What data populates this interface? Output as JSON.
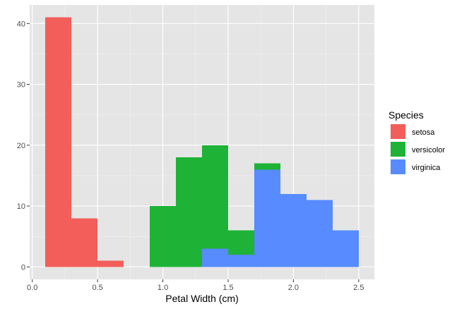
{
  "chart_data": {
    "type": "bar",
    "subtype": "stacked-histogram",
    "title": "",
    "xlabel": "Petal Width (cm)",
    "ylabel": "",
    "xlim": [
      -0.02,
      2.62
    ],
    "ylim": [
      -2.05,
      43.05
    ],
    "x_ticks": [
      0.0,
      0.5,
      1.0,
      1.5,
      2.0,
      2.5
    ],
    "x_tick_labels": [
      "0.0",
      "0.5",
      "1.0",
      "1.5",
      "2.0",
      "2.5"
    ],
    "y_ticks": [
      0,
      10,
      20,
      30,
      40
    ],
    "y_tick_labels": [
      "0",
      "10",
      "20",
      "30",
      "40"
    ],
    "grid": true,
    "background": "#e5e5e5",
    "bin_width": 0.2,
    "bin_starts": [
      0.1,
      0.3,
      0.5,
      0.7,
      0.9,
      1.1,
      1.3,
      1.5,
      1.7,
      1.9,
      2.1,
      2.3
    ],
    "series": [
      {
        "name": "virginica",
        "color": "#578bff",
        "values": [
          0,
          0,
          0,
          0,
          0,
          0,
          3,
          2,
          16,
          12,
          11,
          6
        ]
      },
      {
        "name": "versicolor",
        "color": "#1eb236",
        "values": [
          0,
          0,
          0,
          0,
          10,
          18,
          17,
          4,
          1,
          0,
          0,
          0
        ]
      },
      {
        "name": "setosa",
        "color": "#f35e5a",
        "values": [
          41,
          8,
          1,
          0,
          0,
          0,
          0,
          0,
          0,
          0,
          0,
          0
        ]
      }
    ],
    "legend": {
      "title": "Species",
      "position": "right",
      "entries": [
        {
          "label": "setosa",
          "color": "#f35e5a"
        },
        {
          "label": "versicolor",
          "color": "#1eb236"
        },
        {
          "label": "virginica",
          "color": "#578bff"
        }
      ]
    }
  }
}
